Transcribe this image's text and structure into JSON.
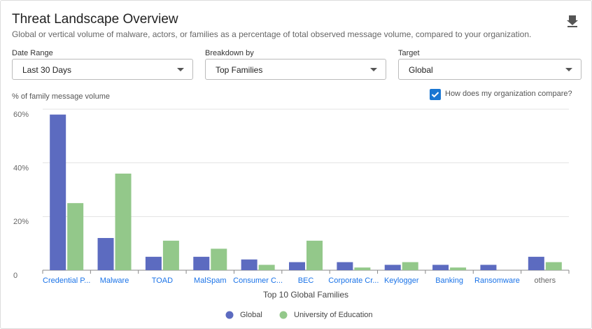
{
  "header": {
    "title": "Threat Landscape Overview",
    "subtitle": "Global or vertical volume of malware, actors, or families as a percentage of total observed message volume, compared to your organization."
  },
  "filters": [
    {
      "label": "Date Range",
      "value": "Last 30 Days"
    },
    {
      "label": "Breakdown by",
      "value": "Top Families"
    },
    {
      "label": "Target",
      "value": "Global"
    }
  ],
  "compare": {
    "label": "How does my organization compare?",
    "checked": true
  },
  "chart_data": {
    "type": "bar",
    "y_label": "% of family message volume",
    "x_label": "Top 10 Global Families",
    "categories": [
      "Credential P...",
      "Malware",
      "TOAD",
      "MalSpam",
      "Consumer C...",
      "BEC",
      "Corporate Cr...",
      "Keylogger",
      "Banking",
      "Ransomware",
      "others"
    ],
    "series": [
      {
        "name": "Global",
        "color": "#5c6bc0",
        "values": [
          58,
          12,
          5,
          5,
          4,
          3,
          3,
          2,
          2,
          2,
          5
        ]
      },
      {
        "name": "University of Education",
        "color": "#93c88a",
        "values": [
          25,
          36,
          11,
          8,
          2,
          11,
          1,
          3,
          1,
          0,
          3
        ]
      }
    ],
    "ylim": [
      0,
      60
    ],
    "yticks": [
      0,
      {
        "value": 20,
        "label": "20%"
      },
      {
        "value": 40,
        "label": "40%"
      },
      {
        "value": 60,
        "label": "60%"
      }
    ],
    "grid": true
  }
}
